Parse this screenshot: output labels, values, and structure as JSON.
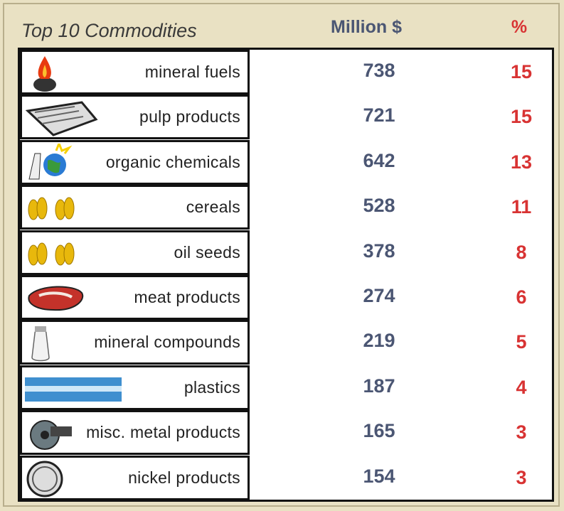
{
  "header": {
    "title": "Top 10 Commodities",
    "value_heading": "Million $",
    "percent_heading": "%"
  },
  "table": {
    "rows": [
      {
        "name": "mineral fuels",
        "value": "738",
        "percent": "15"
      },
      {
        "name": "pulp products",
        "value": "721",
        "percent": "15"
      },
      {
        "name": "organic chemicals",
        "value": "642",
        "percent": "13"
      },
      {
        "name": "cereals",
        "value": "528",
        "percent": "11"
      },
      {
        "name": "oil seeds",
        "value": "378",
        "percent": "8"
      },
      {
        "name": "meat products",
        "value": "274",
        "percent": "6"
      },
      {
        "name": "mineral compounds",
        "value": "219",
        "percent": "5"
      },
      {
        "name": "plastics",
        "value": "187",
        "percent": "4"
      },
      {
        "name": "misc. metal products",
        "value": "165",
        "percent": "3"
      },
      {
        "name": "nickel products",
        "value": "154",
        "percent": "3"
      }
    ]
  }
}
